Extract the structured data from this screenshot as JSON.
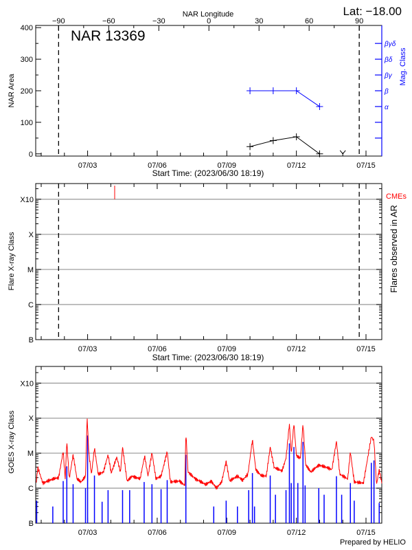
{
  "lat_label": "Lat: −18.00",
  "footer": "Prepared by HELIO",
  "colors": {
    "axis": "#000000",
    "mag": "#0000ff",
    "goes_long": "#ff0000",
    "goes_short": "#0000ff",
    "cme": "#ff0000",
    "grid": "#a0a0a0"
  },
  "time_range": [
    "2023-06-30 18:19",
    "2023-07-15 16:20"
  ],
  "time_ticks": [
    {
      "t": "2023-07-03 00:00",
      "label": "07/03"
    },
    {
      "t": "2023-07-06 00:00",
      "label": "07/06"
    },
    {
      "t": "2023-07-09 00:00",
      "label": "07/09"
    },
    {
      "t": "2023-07-12 00:00",
      "label": "07/12"
    },
    {
      "t": "2023-07-15 00:00",
      "label": "07/15"
    }
  ],
  "limb_times": {
    "east": "2023-07-01 18:00",
    "west": "2023-07-14 17:00"
  },
  "chart_data": [
    {
      "type": "line",
      "title": "NAR 13369",
      "xlabel": "Start Time: (2023/06/30 18:19)",
      "ylabel": "NAR Area",
      "y2label": "Mag. Class",
      "top_axis_label": "NAR Longitude",
      "top_ticks": [
        -90,
        -60,
        -30,
        0,
        30,
        60,
        90
      ],
      "ylim": [
        -7,
        407
      ],
      "yticks": [
        0,
        100,
        200,
        300,
        400
      ],
      "area": {
        "t": [
          "2023-07-10 00:00",
          "2023-07-11 00:00",
          "2023-07-12 00:00",
          "2023-07-13 00:00",
          "2023-07-14 00:00"
        ],
        "values": [
          23,
          42,
          54,
          0,
          0
        ],
        "last_marker": "arrow-down"
      },
      "mag_class_levels": [
        "",
        "",
        "α",
        "β",
        "βγ",
        "βδ",
        "βγδ"
      ],
      "mag_class": {
        "t": [
          "2023-07-10 00:00",
          "2023-07-11 00:00",
          "2023-07-12 00:00",
          "2023-07-13 00:00"
        ],
        "values": [
          "β",
          "β",
          "β",
          "α"
        ]
      }
    },
    {
      "type": "scatter",
      "xlabel": "Start Time: (2023/06/30 18:19)",
      "ylabel": "Flare X-ray Class",
      "y2label": "Flares observed in AR",
      "legend": "CMEs",
      "scale": "log",
      "ylim": [
        1e-07,
        0.0028
      ],
      "yticks": [
        {
          "v": 1e-07,
          "label": "B"
        },
        {
          "v": 1e-06,
          "label": "C"
        },
        {
          "v": 1e-05,
          "label": "M"
        },
        {
          "v": 0.0001,
          "label": "X"
        },
        {
          "v": 0.001,
          "label": "X10"
        }
      ],
      "flares": [],
      "cmes": [
        "2023-07-04 04:00"
      ]
    },
    {
      "type": "line",
      "ylabel": "GOES X-ray Class",
      "scale": "log",
      "ylim": [
        1e-07,
        0.003
      ],
      "yticks": [
        {
          "v": 1e-07,
          "label": "B"
        },
        {
          "v": 1e-06,
          "label": "C"
        },
        {
          "v": 1e-05,
          "label": "M"
        },
        {
          "v": 0.0001,
          "label": "X"
        },
        {
          "v": 0.001,
          "label": "X10"
        }
      ],
      "long_channel": [
        [
          "2023-06-30 19:00",
          1.5e-06
        ],
        [
          "2023-06-30 20:30",
          3.9e-06
        ],
        [
          "2023-07-01 01:40",
          1.4e-06
        ],
        [
          "2023-07-01 12:40",
          1.85e-06
        ],
        [
          "2023-07-01 18:00",
          2e-06
        ],
        [
          "2023-07-01 22:45",
          1.12e-05
        ],
        [
          "2023-07-02 00:50",
          1.85e-06
        ],
        [
          "2023-07-02 02:30",
          2.15e-05
        ],
        [
          "2023-07-02 05:00",
          1.85e-06
        ],
        [
          "2023-07-02 09:00",
          9e-06
        ],
        [
          "2023-07-02 13:00",
          1.85e-06
        ],
        [
          "2023-07-02 17:10",
          1.5e-06
        ],
        [
          "2023-07-02 21:50",
          2.2e-06
        ],
        [
          "2023-07-02 23:30",
          0.000108
        ],
        [
          "2023-07-03 01:20",
          9.7e-06
        ],
        [
          "2023-07-03 04:00",
          2.5e-06
        ],
        [
          "2023-07-03 07:05",
          1.4e-05
        ],
        [
          "2023-07-03 11:00",
          2.5e-06
        ],
        [
          "2023-07-03 16:20",
          2.9e-06
        ],
        [
          "2023-07-03 21:10",
          9e-06
        ],
        [
          "2023-07-04 00:30",
          2.7e-06
        ],
        [
          "2023-07-04 06:10",
          7.7e-06
        ],
        [
          "2023-07-04 10:00",
          2.9e-06
        ],
        [
          "2023-07-04 12:10",
          1.5e-05
        ],
        [
          "2023-07-04 16:50",
          1.6e-06
        ],
        [
          "2023-07-04 22:10",
          2.2e-06
        ],
        [
          "2023-07-05 06:20",
          1.85e-06
        ],
        [
          "2023-07-05 11:00",
          8.3e-06
        ],
        [
          "2023-07-05 14:30",
          2.2e-06
        ],
        [
          "2023-07-05 18:35",
          1.05e-05
        ],
        [
          "2023-07-05 22:40",
          1.85e-06
        ],
        [
          "2023-07-06 04:00",
          2.2e-06
        ],
        [
          "2023-07-06 10:20",
          1.12e-05
        ],
        [
          "2023-07-06 13:40",
          1.5e-06
        ],
        [
          "2023-07-06 23:10",
          1.6e-06
        ],
        [
          "2023-07-07 04:35",
          1.2e-06
        ],
        [
          "2023-07-07 05:40",
          4e-05
        ],
        [
          "2023-07-07 07:50",
          2.9e-06
        ],
        [
          "2023-07-07 15:30",
          1.85e-06
        ],
        [
          "2023-07-08 02:20",
          1.27e-06
        ],
        [
          "2023-07-08 07:50",
          1.6e-06
        ],
        [
          "2023-07-08 13:15",
          1e-06
        ],
        [
          "2023-07-08 18:40",
          1.5e-06
        ],
        [
          "2023-07-08 23:20",
          5.9e-06
        ],
        [
          "2023-07-09 02:50",
          1.6e-06
        ],
        [
          "2023-07-09 11:00",
          2.2e-06
        ],
        [
          "2023-07-09 16:25",
          1.7e-06
        ],
        [
          "2023-07-09 21:50",
          2.5e-06
        ],
        [
          "2023-07-10 02:30",
          2.4e-05
        ],
        [
          "2023-07-10 06:00",
          3.4e-06
        ],
        [
          "2023-07-10 11:25",
          2.3e-06
        ],
        [
          "2023-07-10 16:50",
          2.2e-06
        ],
        [
          "2023-07-10 20:55",
          1.5e-05
        ],
        [
          "2023-07-11 01:00",
          3.9e-06
        ],
        [
          "2023-07-11 09:10",
          3.1e-06
        ],
        [
          "2023-07-11 13:15",
          7.2e-06
        ],
        [
          "2023-07-11 16:45",
          6.9e-05
        ],
        [
          "2023-07-11 18:40",
          9.7e-06
        ],
        [
          "2023-07-11 21:25",
          6.9e-05
        ],
        [
          "2023-07-12 00:05",
          8.3e-06
        ],
        [
          "2023-07-12 04:10",
          7.2e-06
        ],
        [
          "2023-07-12 06:50",
          6.9e-05
        ],
        [
          "2023-07-12 09:35",
          4.6e-06
        ],
        [
          "2023-07-12 15:00",
          2.9e-06
        ],
        [
          "2023-07-12 23:10",
          4.6e-06
        ],
        [
          "2023-07-13 07:20",
          3.9e-06
        ],
        [
          "2023-07-13 12:45",
          3.4e-06
        ],
        [
          "2023-07-13 17:25",
          2.2e-05
        ],
        [
          "2023-07-13 20:55",
          2.5e-06
        ],
        [
          "2023-07-14 05:05",
          1.85e-06
        ],
        [
          "2023-07-14 07:50",
          1.1e-05
        ],
        [
          "2023-07-14 11:50",
          1.5e-06
        ],
        [
          "2023-07-14 21:20",
          1.4e-06
        ],
        [
          "2023-07-15 05:30",
          3e-05
        ],
        [
          "2023-07-15 08:15",
          2.2e-05
        ],
        [
          "2023-07-15 10:55",
          1.27e-06
        ],
        [
          "2023-07-15 13:40",
          3.4e-06
        ],
        [
          "2023-07-15 16:20",
          1.4e-06
        ]
      ],
      "short_channel": [
        [
          "2023-06-30 19:20",
          4.4e-07
        ],
        [
          "2023-07-01 12:00",
          3e-07
        ],
        [
          "2023-07-01 22:45",
          1.6e-06
        ],
        [
          "2023-07-02 02:30",
          4.2e-06
        ],
        [
          "2023-07-02 09:00",
          1.3e-06
        ],
        [
          "2023-07-02 21:50",
          1e-06
        ],
        [
          "2023-07-03 00:00",
          3.2e-05
        ],
        [
          "2023-07-03 07:05",
          2.3e-06
        ],
        [
          "2023-07-03 15:00",
          4.1e-07
        ],
        [
          "2023-07-03 21:10",
          8.8e-07
        ],
        [
          "2023-07-04 12:10",
          8.8e-07
        ],
        [
          "2023-07-04 19:30",
          8.8e-07
        ],
        [
          "2023-07-05 10:30",
          1.5e-06
        ],
        [
          "2023-07-05 18:35",
          1.3e-06
        ],
        [
          "2023-07-06 04:00",
          9.4e-07
        ],
        [
          "2023-07-06 10:20",
          1.7e-06
        ],
        [
          "2023-07-07 05:40",
          9e-06
        ],
        [
          "2023-07-08 10:30",
          3e-07
        ],
        [
          "2023-07-08 23:20",
          4.4e-07
        ],
        [
          "2023-07-09 11:00",
          3e-07
        ],
        [
          "2023-07-09 22:40",
          8.8e-07
        ],
        [
          "2023-07-10 02:30",
          2.7e-06
        ],
        [
          "2023-07-10 04:40",
          3e-07
        ],
        [
          "2023-07-10 20:55",
          2.3e-06
        ],
        [
          "2023-07-11 02:20",
          6.5e-07
        ],
        [
          "2023-07-11 13:15",
          8.8e-07
        ],
        [
          "2023-07-11 16:45",
          1.9e-05
        ],
        [
          "2023-07-11 18:40",
          1.4e-06
        ],
        [
          "2023-07-11 21:25",
          1.5e-05
        ],
        [
          "2023-07-12 01:30",
          1.4e-06
        ],
        [
          "2023-07-12 06:50",
          2.1e-05
        ],
        [
          "2023-07-12 09:00",
          1.2e-06
        ],
        [
          "2023-07-12 23:10",
          1e-06
        ],
        [
          "2023-07-13 04:40",
          6.5e-07
        ],
        [
          "2023-07-13 17:25",
          2.2e-06
        ],
        [
          "2023-07-13 22:50",
          6.5e-07
        ],
        [
          "2023-07-14 07:50",
          1.4e-06
        ],
        [
          "2023-07-14 11:50",
          4.4e-07
        ],
        [
          "2023-07-15 05:30",
          5.3e-06
        ],
        [
          "2023-07-15 08:15",
          6.2e-06
        ],
        [
          "2023-07-15 13:40",
          3.8e-07
        ]
      ]
    }
  ]
}
